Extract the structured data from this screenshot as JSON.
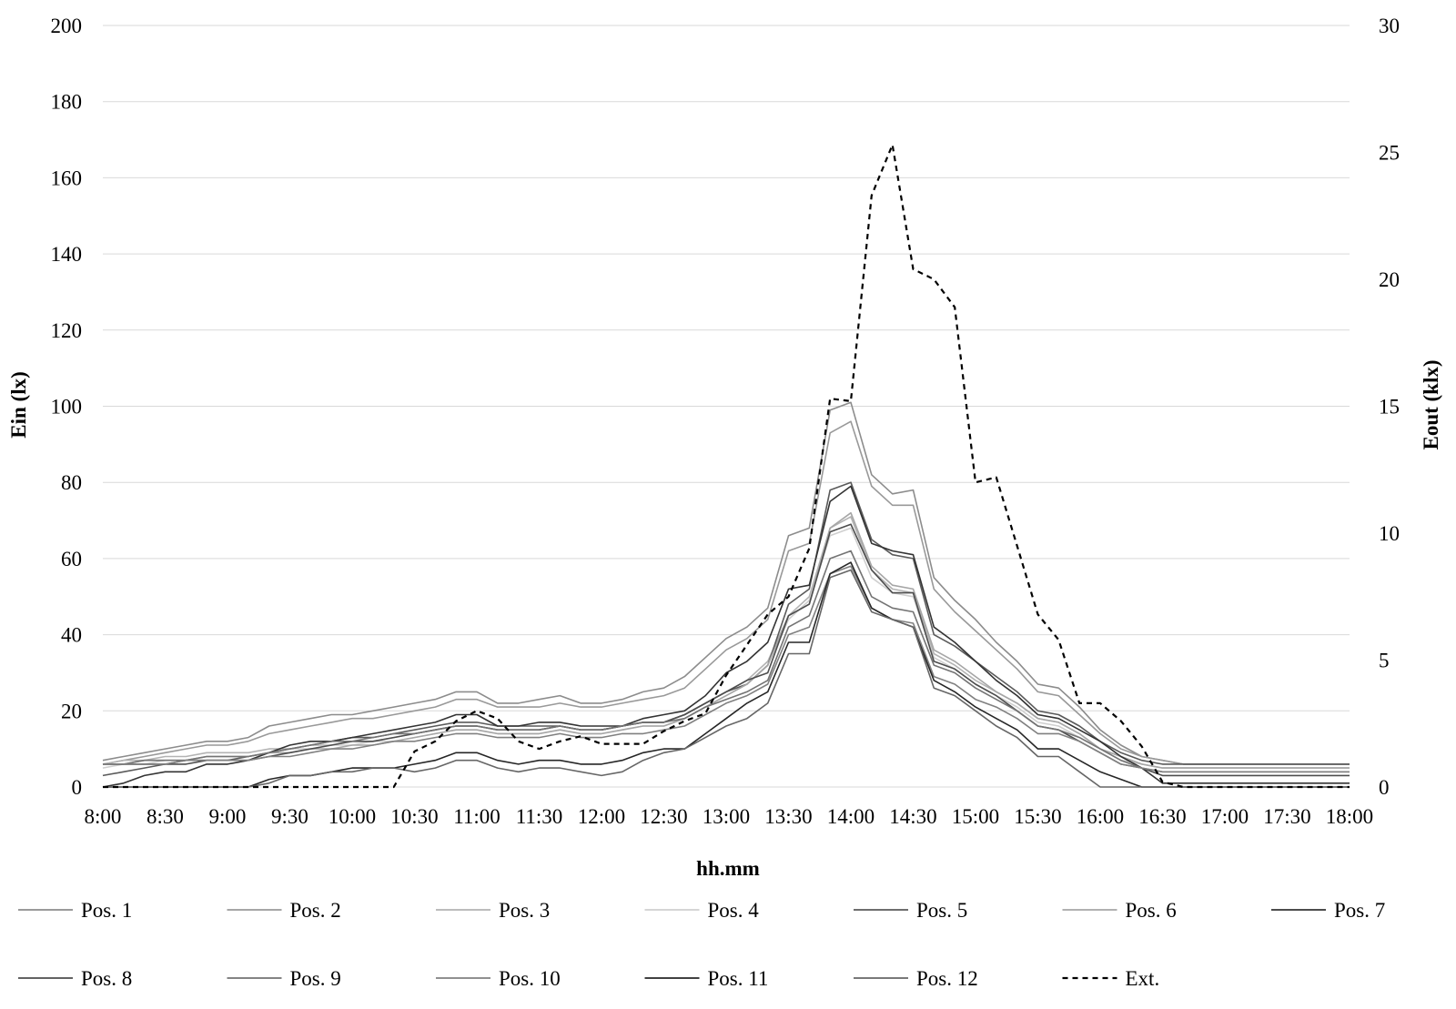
{
  "chart_data": {
    "type": "line",
    "title": "",
    "xlabel": "hh.mm",
    "ylabel": "Ein (lx)",
    "y2label": "Eout (klx)",
    "ylim": [
      0,
      200
    ],
    "y2lim": [
      0,
      30
    ],
    "yticks": [
      0,
      20,
      40,
      60,
      80,
      100,
      120,
      140,
      160,
      180,
      200
    ],
    "y2ticks": [
      0,
      5,
      10,
      15,
      20,
      25,
      30
    ],
    "xtick_labels": [
      "8:00",
      "8:30",
      "9:00",
      "9:30",
      "10:00",
      "10:30",
      "11:00",
      "11:30",
      "12:00",
      "12:30",
      "13:00",
      "13:30",
      "14:00",
      "14:30",
      "15:00",
      "15:30",
      "16:00",
      "16:30",
      "17:00",
      "17:30",
      "18:00"
    ],
    "grid": "horizontal",
    "legend_position": "bottom",
    "x_interval_minutes": 10,
    "x": [
      "8:00",
      "8:10",
      "8:20",
      "8:30",
      "8:40",
      "8:50",
      "9:00",
      "9:10",
      "9:20",
      "9:30",
      "9:40",
      "9:50",
      "10:00",
      "10:10",
      "10:20",
      "10:30",
      "10:40",
      "10:50",
      "11:00",
      "11:10",
      "11:20",
      "11:30",
      "11:40",
      "11:50",
      "12:00",
      "12:10",
      "12:20",
      "12:30",
      "12:40",
      "12:50",
      "13:00",
      "13:10",
      "13:20",
      "13:30",
      "13:40",
      "13:50",
      "14:00",
      "14:10",
      "14:20",
      "14:30",
      "14:40",
      "14:50",
      "15:00",
      "15:10",
      "15:20",
      "15:30",
      "15:40",
      "15:50",
      "16:00",
      "16:10",
      "16:20",
      "16:30",
      "16:40",
      "16:50",
      "17:00",
      "17:10",
      "17:20",
      "17:30",
      "17:40",
      "17:50",
      "18:00"
    ],
    "series": [
      {
        "name": "Pos. 1",
        "axis": "left",
        "color": "#8c8c8c",
        "dash": "",
        "values": [
          7,
          8,
          9,
          10,
          11,
          12,
          12,
          13,
          16,
          17,
          18,
          19,
          19,
          20,
          21,
          22,
          23,
          25,
          25,
          22,
          22,
          23,
          24,
          22,
          22,
          23,
          25,
          26,
          29,
          34,
          39,
          42,
          47,
          66,
          68,
          99,
          101,
          82,
          77,
          78,
          55,
          49,
          44,
          38,
          33,
          27,
          26,
          21,
          15,
          11,
          8,
          7,
          6,
          6,
          6,
          6,
          6,
          6,
          6,
          6,
          6
        ]
      },
      {
        "name": "Pos. 2",
        "axis": "left",
        "color": "#999999",
        "dash": "",
        "values": [
          6,
          7,
          8,
          9,
          10,
          11,
          11,
          12,
          14,
          15,
          16,
          17,
          18,
          18,
          19,
          20,
          21,
          23,
          23,
          21,
          21,
          21,
          22,
          21,
          21,
          22,
          23,
          24,
          26,
          31,
          36,
          39,
          44,
          62,
          64,
          93,
          96,
          79,
          74,
          74,
          52,
          46,
          41,
          36,
          31,
          25,
          24,
          19,
          14,
          10,
          8,
          7,
          6,
          6,
          6,
          6,
          6,
          6,
          6,
          6,
          6
        ]
      },
      {
        "name": "Pos. 3",
        "axis": "left",
        "color": "#b3b3b3",
        "dash": "",
        "values": [
          6,
          7,
          7,
          8,
          8,
          9,
          9,
          9,
          10,
          10,
          11,
          11,
          12,
          12,
          13,
          14,
          15,
          16,
          16,
          15,
          15,
          15,
          16,
          15,
          15,
          16,
          17,
          17,
          19,
          22,
          25,
          28,
          33,
          45,
          50,
          68,
          71,
          57,
          52,
          51,
          35,
          32,
          28,
          25,
          22,
          18,
          17,
          14,
          10,
          8,
          6,
          5,
          5,
          5,
          5,
          5,
          5,
          5,
          5,
          5,
          5
        ]
      },
      {
        "name": "Pos. 4",
        "axis": "left",
        "color": "#cfcfcf",
        "dash": "",
        "values": [
          5,
          6,
          6,
          7,
          7,
          8,
          8,
          8,
          9,
          10,
          10,
          11,
          11,
          12,
          12,
          13,
          14,
          15,
          15,
          14,
          14,
          14,
          15,
          14,
          14,
          15,
          16,
          16,
          18,
          21,
          24,
          27,
          32,
          44,
          49,
          66,
          68,
          55,
          51,
          50,
          34,
          31,
          27,
          24,
          21,
          17,
          16,
          13,
          10,
          7,
          6,
          5,
          5,
          5,
          5,
          5,
          5,
          5,
          5,
          5,
          5
        ]
      },
      {
        "name": "Pos. 5",
        "axis": "left",
        "color": "#5a5a5a",
        "dash": "",
        "values": [
          3,
          4,
          5,
          6,
          7,
          7,
          7,
          8,
          9,
          10,
          11,
          12,
          13,
          13,
          14,
          15,
          16,
          17,
          17,
          16,
          16,
          16,
          16,
          15,
          15,
          16,
          17,
          17,
          19,
          22,
          25,
          27,
          32,
          48,
          52,
          78,
          80,
          65,
          61,
          60,
          40,
          37,
          33,
          29,
          25,
          20,
          19,
          16,
          12,
          9,
          7,
          6,
          6,
          6,
          6,
          6,
          6,
          6,
          6,
          6,
          6
        ]
      },
      {
        "name": "Pos. 6",
        "axis": "left",
        "color": "#a6a6a6",
        "dash": "",
        "values": [
          6,
          6,
          7,
          7,
          7,
          8,
          8,
          8,
          9,
          9,
          10,
          10,
          11,
          11,
          12,
          13,
          14,
          15,
          15,
          14,
          14,
          14,
          15,
          14,
          14,
          15,
          16,
          16,
          18,
          21,
          24,
          27,
          32,
          45,
          48,
          68,
          72,
          58,
          53,
          52,
          36,
          33,
          29,
          25,
          22,
          18,
          17,
          14,
          10,
          8,
          6,
          5,
          5,
          5,
          5,
          5,
          5,
          5,
          5,
          5,
          5
        ]
      },
      {
        "name": "Pos. 7",
        "axis": "left",
        "color": "#333333",
        "dash": "",
        "values": [
          0,
          1,
          3,
          4,
          4,
          6,
          6,
          7,
          9,
          11,
          12,
          12,
          13,
          14,
          15,
          16,
          17,
          19,
          19,
          16,
          16,
          17,
          17,
          16,
          16,
          16,
          18,
          19,
          20,
          24,
          30,
          33,
          38,
          52,
          53,
          75,
          79,
          64,
          62,
          61,
          42,
          38,
          33,
          28,
          24,
          19,
          18,
          15,
          12,
          8,
          5,
          1,
          1,
          1,
          1,
          1,
          1,
          1,
          1,
          1,
          1
        ]
      },
      {
        "name": "Pos. 8",
        "axis": "left",
        "color": "#4d4d4d",
        "dash": "",
        "values": [
          6,
          6,
          6,
          6,
          6,
          7,
          7,
          7,
          8,
          9,
          10,
          11,
          12,
          12,
          13,
          14,
          15,
          16,
          16,
          15,
          15,
          15,
          16,
          15,
          15,
          16,
          17,
          17,
          19,
          22,
          25,
          28,
          30,
          45,
          48,
          67,
          69,
          57,
          51,
          51,
          33,
          31,
          27,
          24,
          20,
          16,
          15,
          12,
          9,
          6,
          5,
          3,
          3,
          3,
          3,
          3,
          3,
          3,
          3,
          3,
          3
        ]
      },
      {
        "name": "Pos. 9",
        "axis": "left",
        "color": "#737373",
        "dash": "",
        "values": [
          6,
          6,
          7,
          7,
          7,
          8,
          8,
          8,
          9,
          10,
          11,
          12,
          12,
          13,
          14,
          14,
          15,
          16,
          16,
          15,
          15,
          15,
          16,
          15,
          15,
          16,
          17,
          17,
          18,
          21,
          23,
          25,
          28,
          42,
          45,
          60,
          62,
          50,
          47,
          46,
          32,
          30,
          26,
          23,
          20,
          16,
          15,
          13,
          10,
          7,
          5,
          4,
          4,
          4,
          4,
          4,
          4,
          4,
          4,
          4,
          4
        ]
      },
      {
        "name": "Pos. 10",
        "axis": "left",
        "color": "#808080",
        "dash": "",
        "values": [
          6,
          6,
          6,
          6,
          7,
          7,
          7,
          7,
          8,
          8,
          9,
          10,
          10,
          11,
          12,
          12,
          13,
          14,
          14,
          13,
          13,
          13,
          14,
          13,
          13,
          14,
          14,
          15,
          16,
          19,
          22,
          24,
          27,
          40,
          42,
          56,
          58,
          47,
          44,
          43,
          29,
          27,
          23,
          21,
          18,
          14,
          14,
          12,
          9,
          6,
          5,
          4,
          4,
          4,
          4,
          4,
          4,
          4,
          4,
          4,
          4
        ]
      },
      {
        "name": "Pos. 11",
        "axis": "left",
        "color": "#262626",
        "dash": "",
        "values": [
          0,
          0,
          0,
          0,
          0,
          0,
          0,
          0,
          2,
          3,
          3,
          4,
          5,
          5,
          5,
          6,
          7,
          9,
          9,
          7,
          6,
          7,
          7,
          6,
          6,
          7,
          9,
          10,
          10,
          14,
          18,
          22,
          25,
          38,
          38,
          56,
          59,
          47,
          44,
          42,
          28,
          25,
          21,
          18,
          15,
          10,
          10,
          7,
          4,
          2,
          0,
          0,
          0,
          0,
          0,
          0,
          0,
          0,
          0,
          0,
          0
        ]
      },
      {
        "name": "Pos. 12",
        "axis": "left",
        "color": "#666666",
        "dash": "",
        "values": [
          0,
          0,
          0,
          0,
          0,
          0,
          0,
          0,
          1,
          3,
          3,
          4,
          4,
          5,
          5,
          4,
          5,
          7,
          7,
          5,
          4,
          5,
          5,
          4,
          3,
          4,
          7,
          9,
          10,
          13,
          16,
          18,
          22,
          35,
          35,
          55,
          57,
          46,
          44,
          42,
          26,
          24,
          20,
          16,
          13,
          8,
          8,
          4,
          0,
          0,
          0,
          0,
          0,
          0,
          0,
          0,
          0,
          0,
          0,
          0,
          0
        ]
      },
      {
        "name": "Ext.",
        "axis": "right",
        "color": "#000000",
        "dash": "6,5",
        "values": [
          0,
          0,
          0,
          0,
          0,
          0,
          0,
          0,
          0,
          0,
          0,
          0,
          0,
          0,
          0,
          1.4,
          1.8,
          2.6,
          3.0,
          2.7,
          1.8,
          1.5,
          1.8,
          2.0,
          1.7,
          1.7,
          1.7,
          2.2,
          2.6,
          2.9,
          4.4,
          5.6,
          6.8,
          7.5,
          9.4,
          15.3,
          15.2,
          23.3,
          25.3,
          20.4,
          20.0,
          18.9,
          12.0,
          12.2,
          9.5,
          6.8,
          5.8,
          3.3,
          3.3,
          2.6,
          1.6,
          0.2,
          0,
          0,
          0,
          0,
          0,
          0,
          0,
          0,
          0
        ]
      }
    ]
  }
}
